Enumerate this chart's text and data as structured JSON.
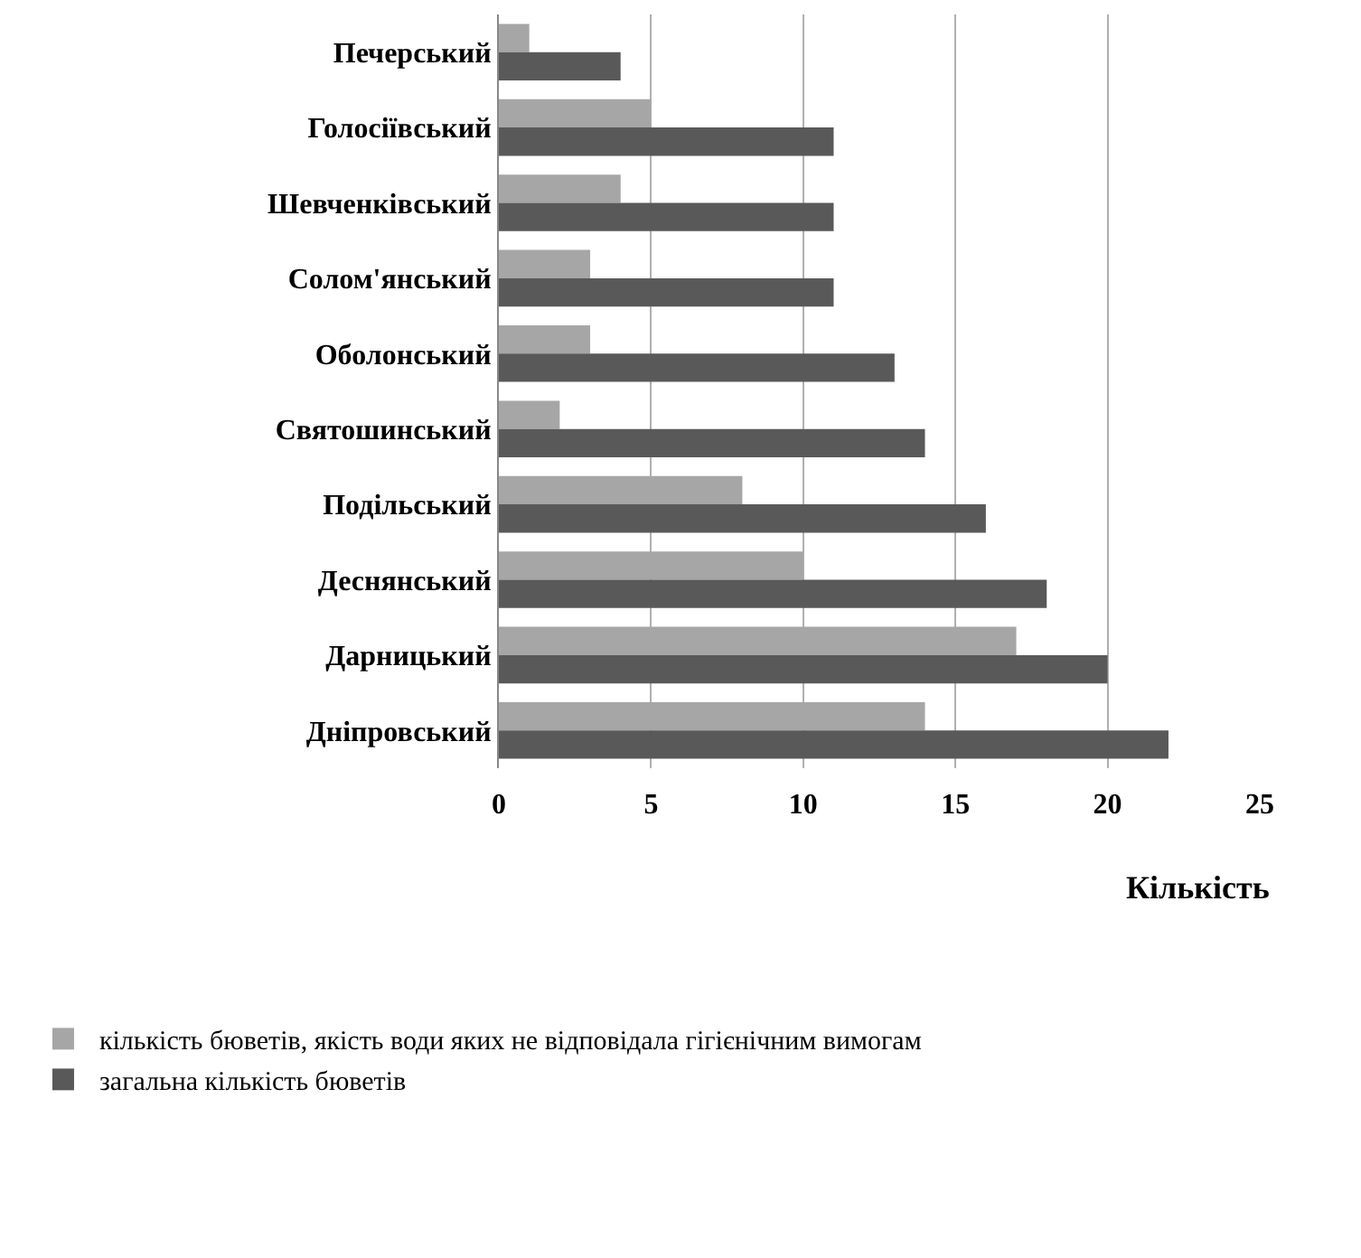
{
  "chart_data": {
    "type": "bar",
    "orientation": "horizontal",
    "xlabel": "Кількість",
    "categories": [
      "Печерський",
      "Голосіївський",
      "Шевченківський",
      "Солом'янський",
      "Оболонський",
      "Святошинський",
      "Подільський",
      "Деснянський",
      "Дарницький",
      "Дніпровський"
    ],
    "series": [
      {
        "name": "кількість бюветів, якість води яких не відповідала гігієнічним вимогам",
        "color": "#a6a6a6",
        "values": [
          1,
          5,
          4,
          3,
          3,
          2,
          8,
          10,
          17,
          14
        ]
      },
      {
        "name": "загальна кількість бюветів",
        "color": "#595959",
        "values": [
          4,
          11,
          11,
          11,
          13,
          14,
          16,
          18,
          20,
          22
        ]
      }
    ],
    "xlim": [
      0,
      25
    ],
    "xticks": [
      0,
      5,
      10,
      15,
      20,
      25
    ],
    "grid": "x",
    "legend": "bottom left"
  }
}
